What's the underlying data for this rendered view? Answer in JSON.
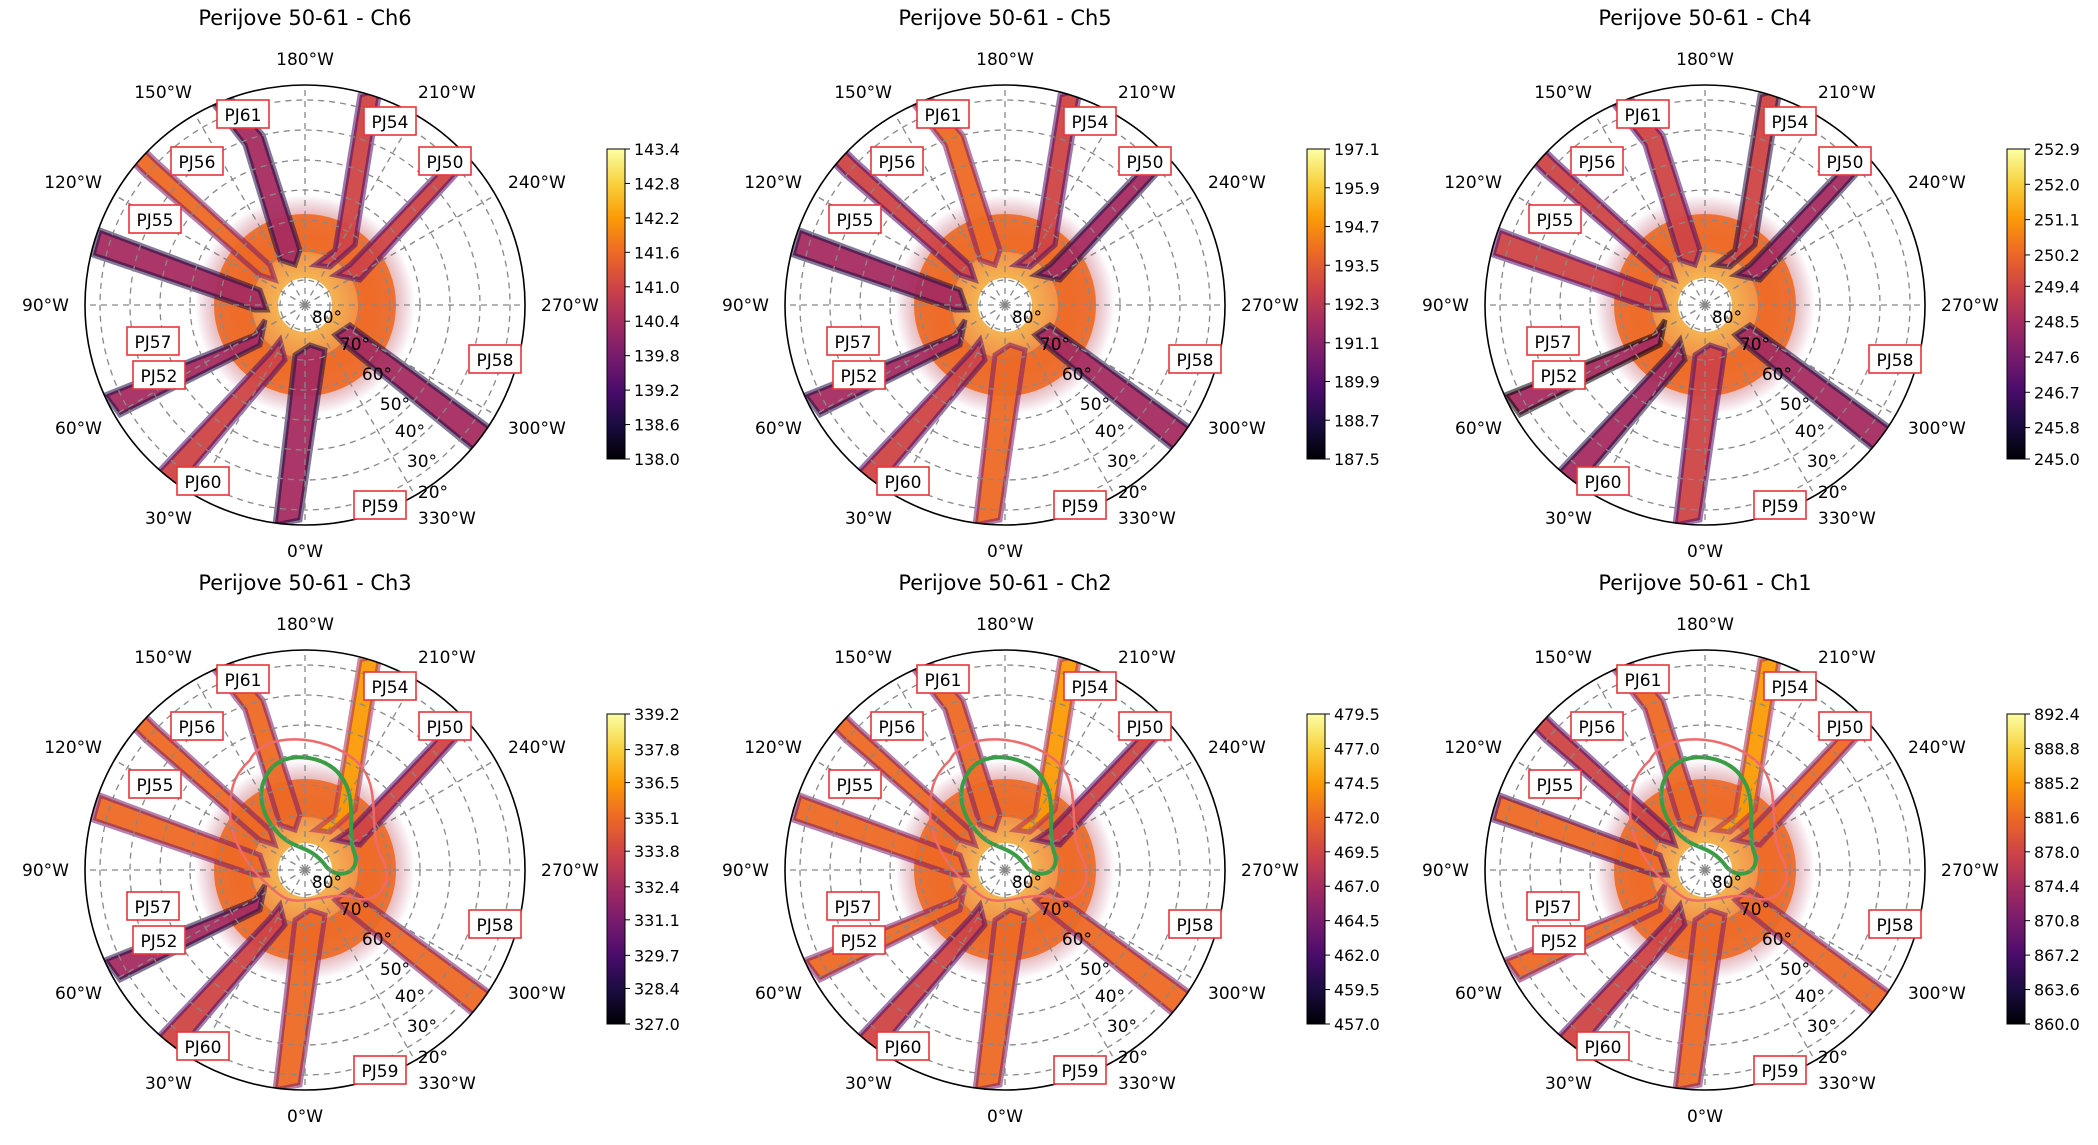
{
  "colormap": [
    "#000004",
    "#1b0c41",
    "#4a0c6b",
    "#781c6d",
    "#a52c60",
    "#cf4446",
    "#ed6925",
    "#fb9b06",
    "#f7d13d",
    "#fcffa4"
  ],
  "colors": {
    "pj_box": "#e8353b",
    "red_contour": "#f06a6a",
    "green_contour": "#3a9d45",
    "grid": "#888888"
  },
  "chart_data": [
    {
      "type": "heatmap",
      "projection": "polar",
      "title": "Perijove 50-61 - Ch6",
      "lon_ticks": [
        "180°W",
        "210°W",
        "240°W",
        "270°W",
        "300°W",
        "330°W",
        "0°W",
        "30°W",
        "60°W",
        "90°W",
        "120°W",
        "150°W"
      ],
      "lat_ticks": [
        "80°",
        "70°",
        "60°",
        "50°",
        "40°",
        "30°",
        "20°"
      ],
      "perijoves": [
        "PJ61",
        "PJ54",
        "PJ56",
        "PJ50",
        "PJ55",
        "PJ57",
        "PJ52",
        "PJ58",
        "PJ60",
        "PJ59"
      ],
      "colorbar": {
        "min": 138.0,
        "max": 143.4,
        "ticks": [
          "143.4",
          "142.8",
          "142.2",
          "141.6",
          "141.0",
          "140.4",
          "139.8",
          "139.2",
          "138.6",
          "138.0"
        ]
      },
      "contours": false
    },
    {
      "type": "heatmap",
      "projection": "polar",
      "title": "Perijove 50-61 - Ch5",
      "lon_ticks": [
        "180°W",
        "210°W",
        "240°W",
        "270°W",
        "300°W",
        "330°W",
        "0°W",
        "30°W",
        "60°W",
        "90°W",
        "120°W",
        "150°W"
      ],
      "lat_ticks": [
        "80°",
        "70°",
        "60°",
        "50°",
        "40°",
        "30°",
        "20°"
      ],
      "perijoves": [
        "PJ61",
        "PJ54",
        "PJ56",
        "PJ50",
        "PJ55",
        "PJ57",
        "PJ52",
        "PJ58",
        "PJ60",
        "PJ59"
      ],
      "colorbar": {
        "min": 187.5,
        "max": 197.1,
        "ticks": [
          "197.1",
          "195.9",
          "194.7",
          "193.5",
          "192.3",
          "191.1",
          "189.9",
          "188.7",
          "187.5"
        ]
      },
      "contours": false
    },
    {
      "type": "heatmap",
      "projection": "polar",
      "title": "Perijove 50-61 - Ch4",
      "lon_ticks": [
        "180°W",
        "210°W",
        "240°W",
        "270°W",
        "300°W",
        "330°W",
        "0°W",
        "30°W",
        "60°W",
        "90°W",
        "120°W",
        "150°W"
      ],
      "lat_ticks": [
        "80°",
        "70°",
        "60°",
        "50°",
        "40°",
        "30°",
        "20°"
      ],
      "perijoves": [
        "PJ61",
        "PJ54",
        "PJ56",
        "PJ50",
        "PJ55",
        "PJ57",
        "PJ52",
        "PJ58",
        "PJ60",
        "PJ59"
      ],
      "colorbar": {
        "min": 245.0,
        "max": 252.9,
        "ticks": [
          "252.9",
          "252.0",
          "251.1",
          "250.2",
          "249.4",
          "248.5",
          "247.6",
          "246.7",
          "245.8",
          "245.0"
        ]
      },
      "contours": false
    },
    {
      "type": "heatmap",
      "projection": "polar",
      "title": "Perijove 50-61 - Ch3",
      "lon_ticks": [
        "180°W",
        "210°W",
        "240°W",
        "270°W",
        "300°W",
        "330°W",
        "0°W",
        "30°W",
        "60°W",
        "90°W",
        "120°W",
        "150°W"
      ],
      "lat_ticks": [
        "80°",
        "70°",
        "60°",
        "50°",
        "40°",
        "30°",
        "20°"
      ],
      "perijoves": [
        "PJ61",
        "PJ54",
        "PJ56",
        "PJ50",
        "PJ55",
        "PJ57",
        "PJ52",
        "PJ58",
        "PJ60",
        "PJ59"
      ],
      "colorbar": {
        "min": 327.0,
        "max": 339.2,
        "ticks": [
          "339.2",
          "337.8",
          "336.5",
          "335.1",
          "333.8",
          "332.4",
          "331.1",
          "329.7",
          "328.4",
          "327.0"
        ]
      },
      "contours": true
    },
    {
      "type": "heatmap",
      "projection": "polar",
      "title": "Perijove 50-61 - Ch2",
      "lon_ticks": [
        "180°W",
        "210°W",
        "240°W",
        "270°W",
        "300°W",
        "330°W",
        "0°W",
        "30°W",
        "60°W",
        "90°W",
        "120°W",
        "150°W"
      ],
      "lat_ticks": [
        "80°",
        "70°",
        "60°",
        "50°",
        "40°",
        "30°",
        "20°"
      ],
      "perijoves": [
        "PJ61",
        "PJ54",
        "PJ56",
        "PJ50",
        "PJ55",
        "PJ57",
        "PJ52",
        "PJ58",
        "PJ60",
        "PJ59"
      ],
      "colorbar": {
        "min": 457.0,
        "max": 479.5,
        "ticks": [
          "479.5",
          "477.0",
          "474.5",
          "472.0",
          "469.5",
          "467.0",
          "464.5",
          "462.0",
          "459.5",
          "457.0"
        ]
      },
      "contours": true
    },
    {
      "type": "heatmap",
      "projection": "polar",
      "title": "Perijove 50-61 - Ch1",
      "lon_ticks": [
        "180°W",
        "210°W",
        "240°W",
        "270°W",
        "300°W",
        "330°W",
        "0°W",
        "30°W",
        "60°W",
        "90°W",
        "120°W",
        "150°W"
      ],
      "lat_ticks": [
        "80°",
        "70°",
        "60°",
        "50°",
        "40°",
        "30°",
        "20°"
      ],
      "perijoves": [
        "PJ61",
        "PJ54",
        "PJ56",
        "PJ50",
        "PJ55",
        "PJ57",
        "PJ52",
        "PJ58",
        "PJ60",
        "PJ59"
      ],
      "colorbar": {
        "min": 860.0,
        "max": 892.4,
        "ticks": [
          "892.4",
          "888.8",
          "885.2",
          "881.6",
          "878.0",
          "874.4",
          "870.8",
          "867.2",
          "863.6",
          "860.0"
        ]
      },
      "contours": true
    }
  ]
}
